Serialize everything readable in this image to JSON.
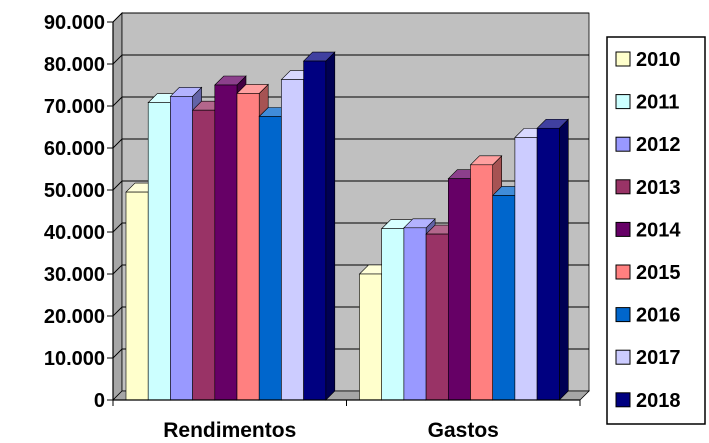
{
  "chart_data": {
    "type": "bar",
    "title": "",
    "xlabel": "",
    "ylabel": "",
    "categories": [
      "Rendimentos",
      "Gastos"
    ],
    "ylim": [
      0,
      90000
    ],
    "yticks": [
      0,
      10000,
      20000,
      30000,
      40000,
      50000,
      60000,
      70000,
      80000,
      90000
    ],
    "ytick_labels": [
      "0",
      "10.000",
      "20.000",
      "30.000",
      "40.000",
      "50.000",
      "60.000",
      "70.000",
      "80.000",
      "90.000"
    ],
    "grid": true,
    "three_d": true,
    "plot_background": "#c0c0c0",
    "legend_position": "right",
    "series": [
      {
        "name": "2010",
        "color": "#ffffcc",
        "values": [
          49500,
          30000
        ]
      },
      {
        "name": "2011",
        "color": "#ccffff",
        "values": [
          70800,
          40800
        ]
      },
      {
        "name": "2012",
        "color": "#9999ff",
        "values": [
          72300,
          41000
        ]
      },
      {
        "name": "2013",
        "color": "#993366",
        "values": [
          69000,
          39500
        ]
      },
      {
        "name": "2014",
        "color": "#660066",
        "values": [
          75000,
          52700
        ]
      },
      {
        "name": "2015",
        "color": "#ff8080",
        "values": [
          73000,
          56000
        ]
      },
      {
        "name": "2016",
        "color": "#0066cc",
        "values": [
          67500,
          48700
        ]
      },
      {
        "name": "2017",
        "color": "#ccccff",
        "values": [
          76300,
          62500
        ]
      },
      {
        "name": "2018",
        "color": "#000080",
        "values": [
          80700,
          64700
        ]
      }
    ]
  }
}
